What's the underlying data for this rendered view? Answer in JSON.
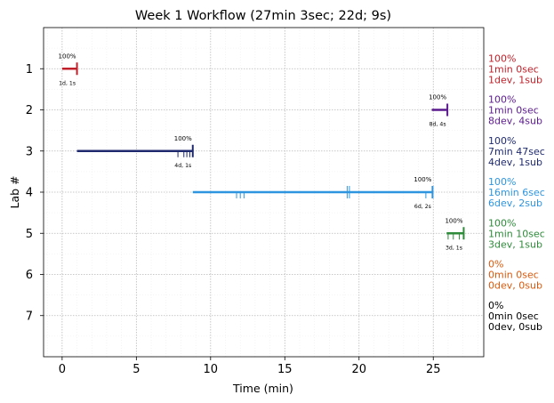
{
  "chart_data": {
    "type": "line",
    "title": "Week 1 Workflow (27min 3sec; 22d; 9s)",
    "xlabel": "Time (min)",
    "ylabel": "Lab #",
    "xlim": [
      -1.25,
      28.4
    ],
    "ylim": [
      8.0,
      0.0
    ],
    "xticks": [
      0,
      5,
      10,
      15,
      20,
      25
    ],
    "yticks": [
      1,
      2,
      3,
      4,
      5,
      6,
      7
    ],
    "grid": true,
    "minor_grid": true,
    "labs": [
      {
        "lab": 1,
        "color": "#c0202a",
        "start": 0.0,
        "end": 1.0,
        "percent": "100%",
        "subtext": "1d, 1s",
        "ticks": [
          1.0
        ],
        "right_text": [
          "100%",
          "1min 0sec",
          "1dev, 1sub"
        ]
      },
      {
        "lab": 2,
        "color": "#5b1a8e",
        "start": 24.9,
        "end": 25.95,
        "percent": "100%",
        "subtext": "8d, 4s",
        "ticks": [
          25.95
        ],
        "right_text": [
          "100%",
          "1min 0sec",
          "8dev, 4sub"
        ]
      },
      {
        "lab": 3,
        "color": "#1f2a6e",
        "start": 1.0,
        "end": 8.8,
        "percent": "100%",
        "subtext": "4d, 1s",
        "ticks": [
          7.8,
          8.2,
          8.4,
          8.6,
          8.8
        ],
        "right_text": [
          "100%",
          "7min 47sec",
          "4dev, 1sub"
        ]
      },
      {
        "lab": 4,
        "color": "#2e95e0",
        "start": 8.8,
        "end": 24.95,
        "percent": "100%",
        "subtext": "6d, 2s",
        "ticks": [
          11.75,
          12.0,
          12.25,
          19.2,
          19.35,
          24.5,
          24.95
        ],
        "right_text": [
          "100%",
          "16min 6sec",
          "6dev, 2sub"
        ]
      },
      {
        "lab": 5,
        "color": "#2e8b3a",
        "start": 25.9,
        "end": 27.05,
        "percent": "100%",
        "subtext": "3d, 1s",
        "ticks": [
          26.0,
          26.35,
          26.75,
          27.05
        ],
        "right_text": [
          "100%",
          "1min 10sec",
          "3dev, 1sub"
        ]
      },
      {
        "lab": 6,
        "color": "#d95a0e",
        "start": null,
        "end": null,
        "percent": "",
        "subtext": "",
        "ticks": [],
        "right_text": [
          "0%",
          "0min 0sec",
          "0dev, 0sub"
        ]
      },
      {
        "lab": 7,
        "color": "#000000",
        "start": null,
        "end": null,
        "percent": "",
        "subtext": "",
        "ticks": [],
        "right_text": [
          "0%",
          "0min 0sec",
          "0dev, 0sub"
        ]
      }
    ]
  }
}
